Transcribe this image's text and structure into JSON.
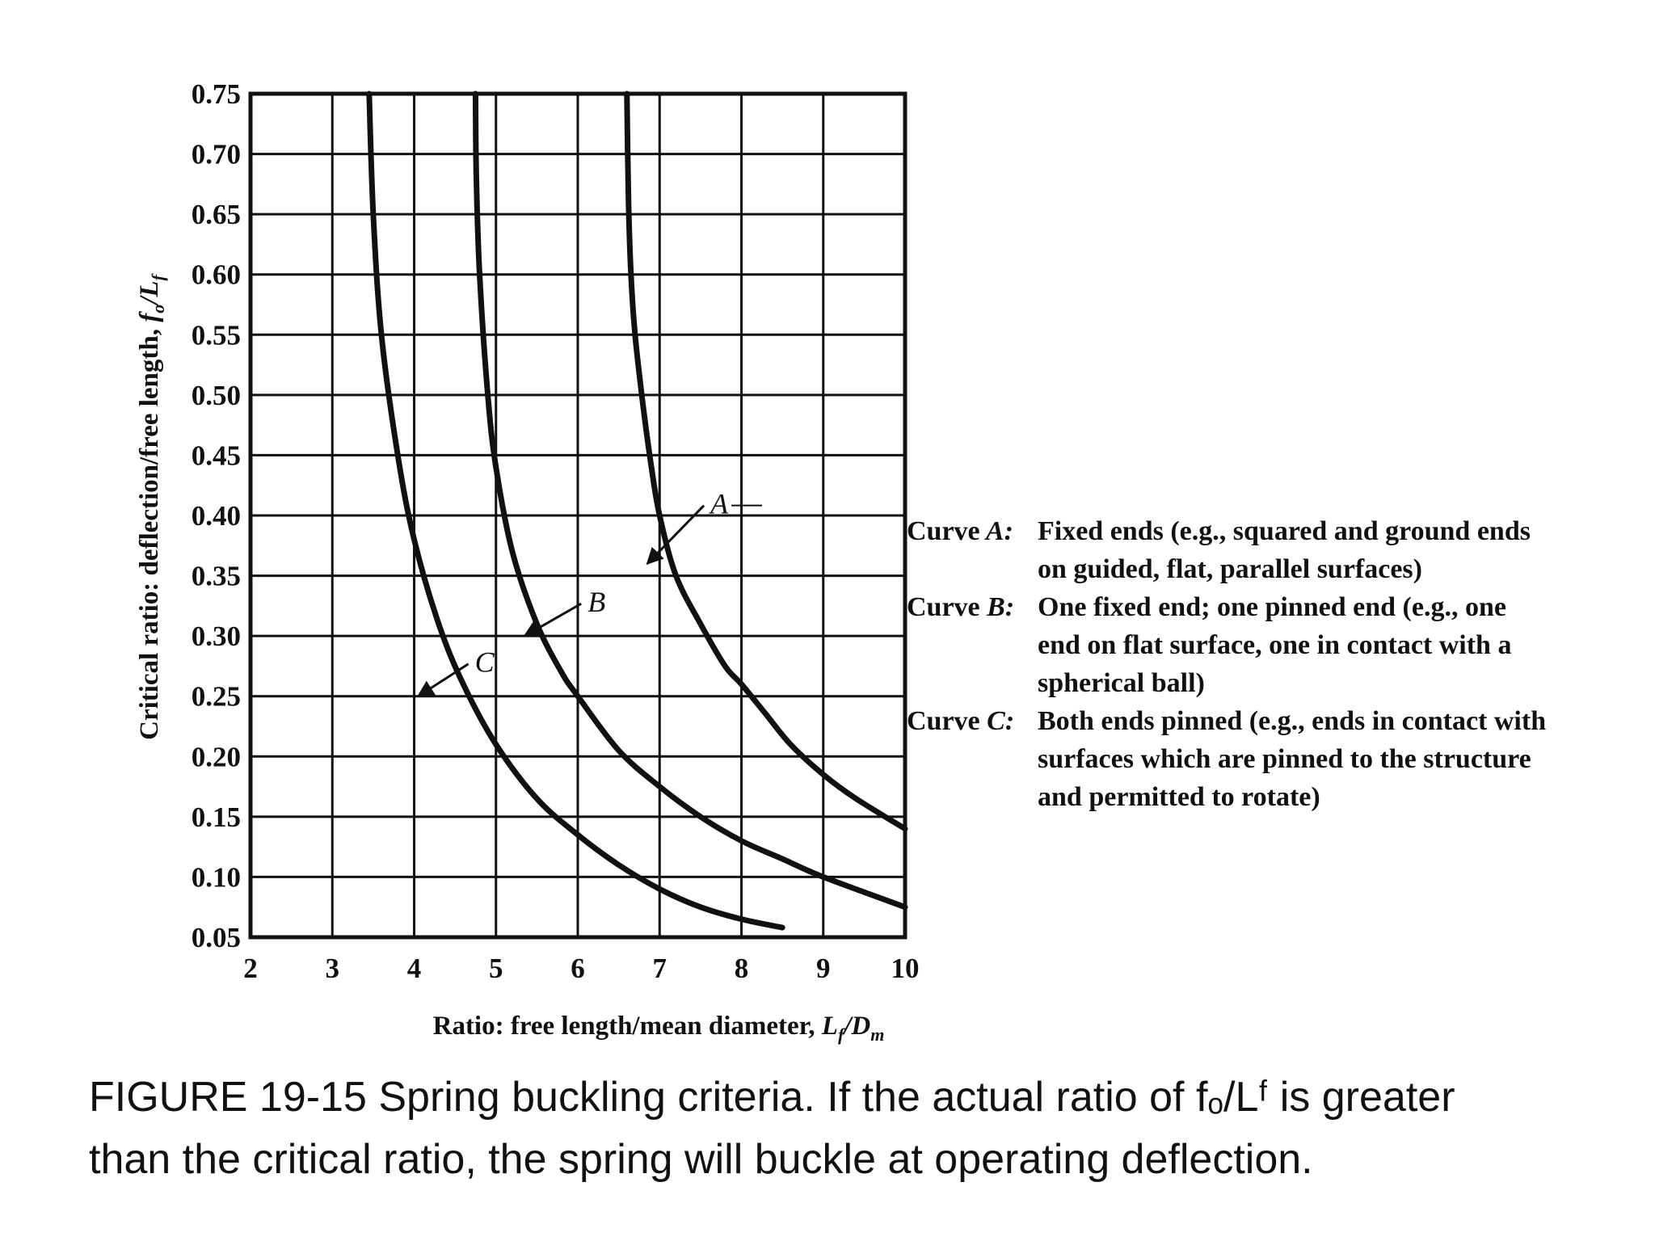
{
  "chart_data": {
    "type": "line",
    "xlabel": "Ratio: free length/mean diameter, L_f/D_m",
    "ylabel": "Critical ratio: deflection/free length, f_o/L_f",
    "xlim": [
      2,
      10
    ],
    "ylim": [
      0.05,
      0.75
    ],
    "x_ticks": [
      "2",
      "3",
      "4",
      "5",
      "6",
      "7",
      "8",
      "9",
      "10"
    ],
    "y_ticks": [
      "0.05",
      "0.10",
      "0.15",
      "0.20",
      "0.25",
      "0.30",
      "0.35",
      "0.40",
      "0.45",
      "0.50",
      "0.55",
      "0.60",
      "0.65",
      "0.70",
      "0.75"
    ],
    "grid": true,
    "series": [
      {
        "name": "A",
        "x": [
          6.6,
          6.62,
          6.65,
          6.7,
          6.8,
          6.9,
          7.0,
          7.2,
          7.5,
          7.8,
          8.0,
          8.3,
          8.6,
          9.0,
          9.4,
          10.0
        ],
        "y": [
          0.75,
          0.66,
          0.6,
          0.55,
          0.49,
          0.44,
          0.4,
          0.35,
          0.31,
          0.275,
          0.26,
          0.235,
          0.21,
          0.185,
          0.165,
          0.14
        ]
      },
      {
        "name": "B",
        "x": [
          4.75,
          4.76,
          4.8,
          4.9,
          5.0,
          5.2,
          5.5,
          5.8,
          6.0,
          6.5,
          7.0,
          7.5,
          8.0,
          8.5,
          9.0,
          10.0
        ],
        "y": [
          0.75,
          0.68,
          0.6,
          0.5,
          0.44,
          0.37,
          0.31,
          0.27,
          0.25,
          0.205,
          0.175,
          0.15,
          0.13,
          0.115,
          0.1,
          0.075
        ]
      },
      {
        "name": "C",
        "x": [
          3.45,
          3.5,
          3.6,
          3.8,
          4.0,
          4.3,
          4.6,
          5.0,
          5.5,
          6.0,
          6.5,
          7.0,
          7.5,
          8.0,
          8.5
        ],
        "y": [
          0.75,
          0.65,
          0.55,
          0.45,
          0.38,
          0.31,
          0.26,
          0.21,
          0.165,
          0.135,
          0.11,
          0.09,
          0.075,
          0.065,
          0.058
        ]
      }
    ],
    "annotations": [
      {
        "label": "A",
        "arrow_to": [
          6.85,
          0.36
        ]
      },
      {
        "label": "B",
        "arrow_to": [
          5.35,
          0.3
        ]
      },
      {
        "label": "C",
        "arrow_to": [
          4.05,
          0.25
        ]
      }
    ]
  },
  "legend": [
    {
      "prefix": "Curve",
      "letter": "A",
      "lines": [
        "Fixed ends (e.g., squared and ground ends",
        "on guided, flat, parallel surfaces)"
      ]
    },
    {
      "prefix": "Curve",
      "letter": "B",
      "lines": [
        "One fixed end; one pinned end (e.g., one",
        "end on flat surface, one in contact with a",
        "spherical ball)"
      ]
    },
    {
      "prefix": "Curve",
      "letter": "C",
      "lines": [
        "Both ends pinned (e.g., ends in contact with",
        "surfaces which are pinned to the structure",
        "and permitted to rotate)"
      ]
    }
  ],
  "caption": {
    "line1": "FIGURE 19-15 Spring buckling criteria. If the actual ratio of fₒ/Lᶠ is greater",
    "line2": "than the critical ratio, the spring will buckle at operating deflection."
  },
  "colors": {
    "ink": "#111111",
    "background": "#ffffff"
  }
}
